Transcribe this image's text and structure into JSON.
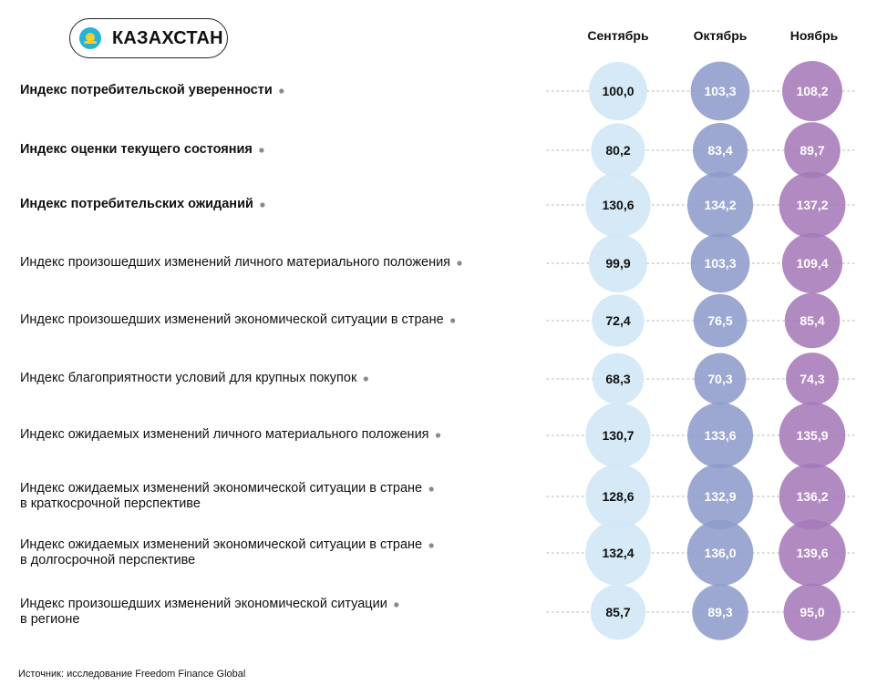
{
  "header": {
    "country": "КАЗАХСТАН",
    "flag_icon": "kazakhstan-flag-icon"
  },
  "colors": {
    "september": "#d3e8f6",
    "october": "#8e9ccb",
    "november": "#a67ab9",
    "dots": "#cdcdcd"
  },
  "chart_data": {
    "type": "bubble-table",
    "columns": [
      "Сентябрь",
      "Октябрь",
      "Ноябрь"
    ],
    "rows": [
      {
        "label": "Индекс потребительской уверенности",
        "bold": true,
        "values": [
          "100,0",
          "103,3",
          "108,2"
        ]
      },
      {
        "label": "Индекс оценки текущего состояния",
        "bold": true,
        "values": [
          "80,2",
          "83,4",
          "89,7"
        ]
      },
      {
        "label": "Индекс потребительских ожиданий",
        "bold": true,
        "values": [
          "130,6",
          "134,2",
          "137,2"
        ]
      },
      {
        "label": "Индекс произошедших изменений личного материального положения",
        "bold": false,
        "values": [
          "99,9",
          "103,3",
          "109,4"
        ]
      },
      {
        "label": "Индекс произошедших изменений экономической ситуации в стране",
        "bold": false,
        "values": [
          "72,4",
          "76,5",
          "85,4"
        ]
      },
      {
        "label": "Индекс благоприятности условий для крупных покупок",
        "bold": false,
        "values": [
          "68,3",
          "70,3",
          "74,3"
        ]
      },
      {
        "label": "Индекс ожидаемых изменений личного материального положения",
        "bold": false,
        "values": [
          "130,7",
          "133,6",
          "135,9"
        ]
      },
      {
        "label": "Индекс ожидаемых изменений экономической ситуации в стране\nв краткосрочной перспективе",
        "bold": false,
        "values": [
          "128,6",
          "132,9",
          "136,2"
        ]
      },
      {
        "label": "Индекс ожидаемых изменений экономической ситуации в стране\nв долгосрочной перспективе",
        "bold": false,
        "values": [
          "132,4",
          "136,0",
          "139,6"
        ]
      },
      {
        "label": "Индекс произошедших изменений экономической ситуации\nв регионе",
        "bold": false,
        "values": [
          "85,7",
          "89,3",
          "95,0"
        ]
      }
    ]
  },
  "footer": {
    "source": "Источник: исследование Freedom Finance Global"
  }
}
